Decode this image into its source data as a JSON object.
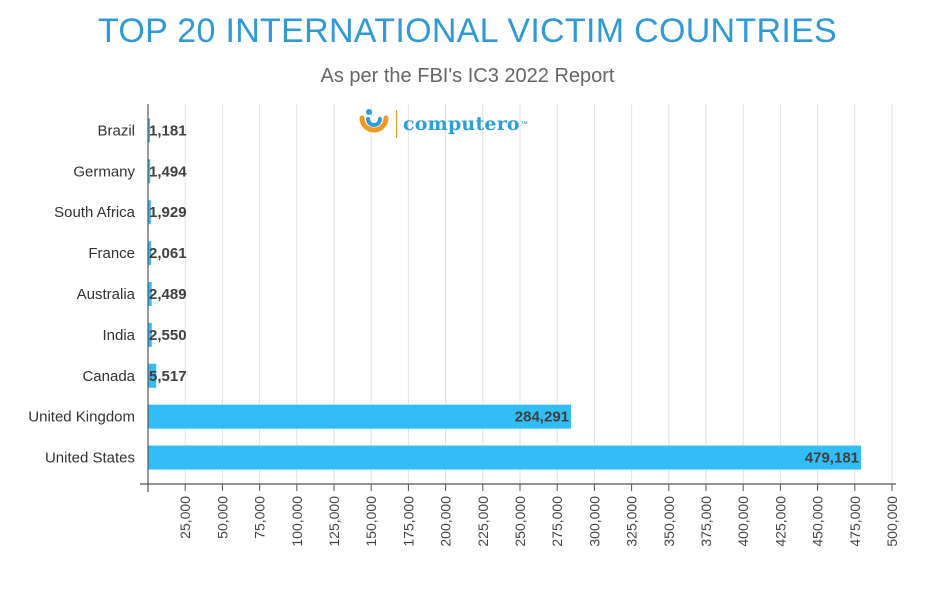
{
  "chart_data": {
    "type": "bar",
    "orientation": "horizontal",
    "title": "TOP 20 INTERNATIONAL VICTIM COUNTRIES",
    "subtitle": "As per the FBI's IC3 2022 Report",
    "categories": [
      "Brazil",
      "Germany",
      "South Africa",
      "France",
      "Australia",
      "India",
      "Canada",
      "United Kingdom",
      "United States"
    ],
    "values": [
      1181,
      1494,
      1929,
      2061,
      2489,
      2550,
      5517,
      284291,
      479181
    ],
    "value_labels": [
      "1,181",
      "1,494",
      "1,929",
      "2,061",
      "2,489",
      "2,550",
      "5,517",
      "284,291",
      "479,181"
    ],
    "xlim": [
      0,
      500000
    ],
    "x_ticks": [
      25000,
      50000,
      75000,
      100000,
      125000,
      150000,
      175000,
      200000,
      225000,
      250000,
      275000,
      300000,
      325000,
      350000,
      375000,
      400000,
      425000,
      450000,
      475000,
      500000
    ],
    "x_tick_labels": [
      "25,000",
      "50,000",
      "75,000",
      "100,000",
      "125,000",
      "150,000",
      "175,000",
      "200,000",
      "225,000",
      "250,000",
      "275,000",
      "300,000",
      "325,000",
      "350,000",
      "375,000",
      "400,000",
      "425,000",
      "450,000",
      "475,000",
      "500,000"
    ],
    "grid": true,
    "legend": "none",
    "bar_color": "#33bdf6",
    "grid_color": "#e2e2e2",
    "axis_color": "#555555",
    "title_color": "#2f9ad6"
  },
  "logo": {
    "text": "computero",
    "tm": "™",
    "icon": "computero-swirl-icon",
    "colors": {
      "orange": "#f29a1f",
      "blue": "#2a9fd8"
    }
  }
}
